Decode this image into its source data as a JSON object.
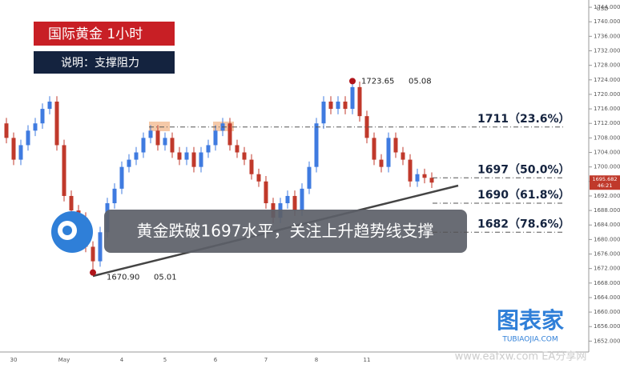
{
  "chart_data": {
    "type": "candlestick",
    "title": "国际黄金  1小时",
    "subtitle": "说明：支撑阻力",
    "currency": "USD",
    "categories": [
      null,
      "30",
      null,
      null,
      null,
      null,
      null,
      null,
      "May",
      null,
      null,
      null,
      null,
      null,
      null,
      null,
      "4",
      null,
      null,
      null,
      null,
      null,
      "5",
      null,
      null,
      null,
      null,
      null,
      null,
      "6",
      null,
      null,
      null,
      null,
      null,
      null,
      "7",
      null,
      null,
      null,
      null,
      null,
      null,
      "8",
      null,
      null,
      null,
      null,
      null,
      null,
      "11",
      null,
      null,
      null,
      null,
      null,
      null,
      null,
      null,
      null
    ],
    "open": [
      1712,
      1708,
      1702,
      1706,
      1710,
      1712,
      1716,
      1718,
      1706,
      1692,
      1688,
      1686,
      1678,
      1674,
      1682,
      1690,
      1694,
      1700,
      1702,
      1704,
      1708,
      1710,
      1706,
      1708,
      1704,
      1702,
      1704,
      1700,
      1704,
      1706,
      1710,
      1712,
      1706,
      1704,
      1702,
      1698,
      1696,
      1690,
      1686,
      1690,
      1692,
      1688,
      1694,
      1700,
      1712,
      1718,
      1716,
      1718,
      1716,
      1722,
      1714,
      1708,
      1702,
      1700,
      1708,
      1704,
      1702,
      1696,
      1698,
      1697
    ],
    "high": [
      1713.5,
      1709.5,
      1707.5,
      1711.5,
      1713.5,
      1717.5,
      1719.5,
      1719.5,
      1707.5,
      1693.5,
      1689.5,
      1687.5,
      1679.5,
      1683.5,
      1691.5,
      1695.5,
      1701.5,
      1703.5,
      1705.5,
      1709.5,
      1711.5,
      1711.5,
      1709.5,
      1709.5,
      1705.5,
      1705.5,
      1705.5,
      1705.5,
      1707.5,
      1711.5,
      1713.5,
      1713.5,
      1707.5,
      1705.5,
      1703.5,
      1699.5,
      1697.5,
      1691.5,
      1691.5,
      1693.5,
      1693.5,
      1695.5,
      1701.5,
      1713.5,
      1719.5,
      1719.5,
      1719.5,
      1719.5,
      1723.65,
      1723.5,
      1715.5,
      1709.5,
      1703.5,
      1709.5,
      1709.5,
      1705.5,
      1703.5,
      1699.5,
      1699.5,
      1698.5
    ],
    "low": [
      1706.5,
      1700.5,
      1700.5,
      1704.5,
      1708.5,
      1710.5,
      1714.5,
      1704.5,
      1690.5,
      1686.5,
      1684.5,
      1676.5,
      1670.9,
      1672.5,
      1680.5,
      1688.5,
      1692.5,
      1698.5,
      1700.5,
      1702.5,
      1706.5,
      1704.5,
      1704.5,
      1702.5,
      1700.5,
      1700.5,
      1698.5,
      1698.5,
      1702.5,
      1704.5,
      1708.5,
      1704.5,
      1702.5,
      1700.5,
      1696.5,
      1694.5,
      1688.5,
      1684.5,
      1684.5,
      1688.5,
      1686.5,
      1686.5,
      1692.5,
      1698.5,
      1710.5,
      1714.5,
      1714.5,
      1714.5,
      1714.5,
      1712.5,
      1706.5,
      1700.5,
      1698.5,
      1698.5,
      1702.5,
      1700.5,
      1694.5,
      1694.5,
      1695.5,
      1694.2
    ],
    "close": [
      1708,
      1702,
      1706,
      1710,
      1712,
      1716,
      1718,
      1706,
      1692,
      1688,
      1686,
      1678,
      1674,
      1682,
      1690,
      1694,
      1700,
      1702,
      1704,
      1708,
      1710,
      1706,
      1708,
      1704,
      1702,
      1704,
      1700,
      1704,
      1706,
      1710,
      1712,
      1706,
      1704,
      1702,
      1698,
      1696,
      1690,
      1686,
      1690,
      1692,
      1688,
      1694,
      1700,
      1712,
      1718,
      1716,
      1718,
      1716,
      1722,
      1714,
      1708,
      1702,
      1700,
      1708,
      1704,
      1702,
      1696,
      1698,
      1697,
      1695.682
    ],
    "up_color": "#3f7be0",
    "down_color": "#c0392b",
    "ylim": [
      1649,
      1746
    ],
    "yticks": [
      {
        "value": 1652,
        "label": "1652.000"
      },
      {
        "value": 1656,
        "label": "1656.000"
      },
      {
        "value": 1660,
        "label": "1660.000"
      },
      {
        "value": 1664,
        "label": "1664.000"
      },
      {
        "value": 1668,
        "label": "1668.000"
      },
      {
        "value": 1672,
        "label": "1672.000"
      },
      {
        "value": 1676,
        "label": "1676.000"
      },
      {
        "value": 1680,
        "label": "1680.000"
      },
      {
        "value": 1684,
        "label": "1684.000"
      },
      {
        "value": 1688,
        "label": "1688.000"
      },
      {
        "value": 1692,
        "label": "1692.000"
      },
      {
        "value": 1696,
        "label": "1696.000"
      },
      {
        "value": 1700,
        "label": "1700.000"
      },
      {
        "value": 1704,
        "label": "1704.000"
      },
      {
        "value": 1708,
        "label": "1708.000"
      },
      {
        "value": 1712,
        "label": "1712.000"
      },
      {
        "value": 1716,
        "label": "1716.000"
      },
      {
        "value": 1720,
        "label": "1720.000"
      },
      {
        "value": 1724,
        "label": "1724.000"
      },
      {
        "value": 1728,
        "label": "1728.000"
      },
      {
        "value": 1732,
        "label": "1732.000"
      },
      {
        "value": 1736,
        "label": "1736.000"
      },
      {
        "value": 1740,
        "label": "1740.000"
      },
      {
        "value": 1744,
        "label": "1744.000"
      }
    ],
    "grid": false,
    "last_price": {
      "value": 1695.682,
      "label": "1695.682",
      "countdown": "46:21"
    },
    "fib_levels": [
      {
        "value": 1711,
        "label": "1711（23.6%）"
      },
      {
        "value": 1697,
        "label": "1697（50.0%）"
      },
      {
        "value": 1690,
        "label": "1690（61.8%）"
      },
      {
        "value": 1682,
        "label": "1682（78.6%）"
      }
    ],
    "high_point": {
      "index": 48,
      "value": 1723.65,
      "label": "1723.65",
      "date": "05.08"
    },
    "low_point": {
      "index": 12,
      "value": 1670.9,
      "label": "1670.90",
      "date": "05.01"
    },
    "banner": "黄金跌破1697水平，关注上升趋势线支撑",
    "watermark": {
      "brand": "图表家",
      "site": "TUBIAOJIA.COM",
      "source": "www.eafxw.com  EA分享网"
    }
  }
}
